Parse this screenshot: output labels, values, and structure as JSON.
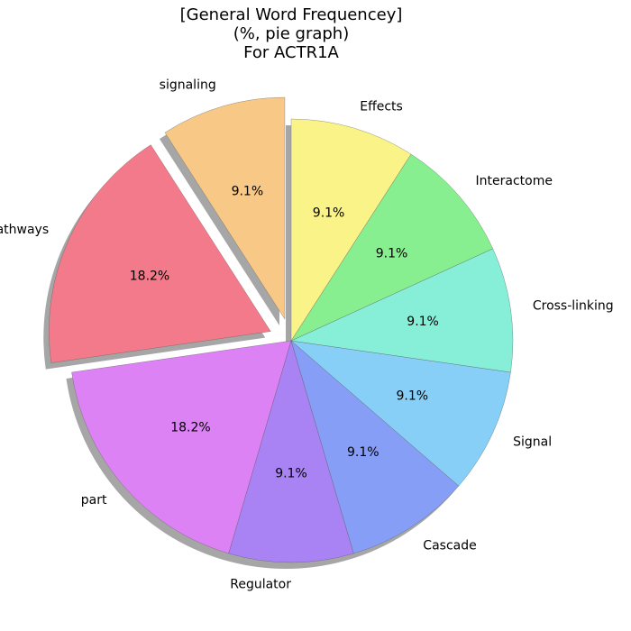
{
  "chart_data": {
    "type": "pie",
    "title": [
      "[General Word Frequencey]",
      "(%, pie graph)",
      "For ACTR1A"
    ],
    "categories": [
      "signaling",
      "pathways",
      "part",
      "Regulator",
      "Cascade",
      "Signal",
      "Cross-linking",
      "Interactome",
      "Effects"
    ],
    "values": [
      9.1,
      18.2,
      18.2,
      9.1,
      9.1,
      9.1,
      9.1,
      9.1,
      9.1
    ],
    "value_labels": [
      "9.1%",
      "18.2%",
      "18.2%",
      "9.1%",
      "9.1%",
      "9.1%",
      "9.1%",
      "9.1%",
      "9.1%"
    ],
    "colors": [
      "#f8c986",
      "#f27a8a",
      "#dd82f4",
      "#a983f4",
      "#879ef6",
      "#87cff6",
      "#87eed8",
      "#88ef91",
      "#f9f388"
    ],
    "exploded": [
      true,
      true,
      false,
      false,
      false,
      false,
      false,
      false,
      false
    ],
    "start_angle_deg": 90,
    "direction": "counterclockwise",
    "shadow": true,
    "legend": "none"
  }
}
